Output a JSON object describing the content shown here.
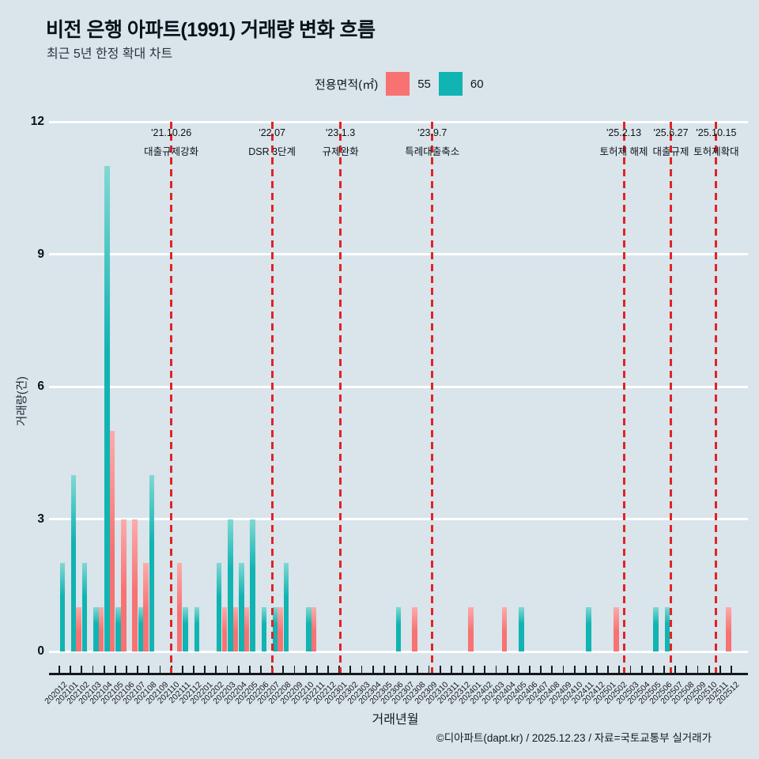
{
  "page": {
    "background": "#d9e4eb"
  },
  "header": {
    "title": "비전 은행 아파트(1991) 거래량 변화 흐름",
    "subtitle": "최근 5년 한정 확대 차트"
  },
  "legend": {
    "label": "전용면적(㎡)",
    "items": [
      {
        "name": "55",
        "color": "#f87272"
      },
      {
        "name": "60",
        "color": "#10b4b2"
      }
    ]
  },
  "chart_data": {
    "type": "bar",
    "title": "비전 은행 아파트(1991) 거래량 변화 흐름",
    "xlabel": "거래년월",
    "ylabel": "거래량(건)",
    "ylim": [
      0,
      12
    ],
    "yticks": [
      0,
      3,
      6,
      9,
      12
    ],
    "grid": true,
    "gridline_color": "#ffffff",
    "legend_position": "top",
    "categories": [
      "202012",
      "202101",
      "202102",
      "202103",
      "202104",
      "202105",
      "202106",
      "202107",
      "202108",
      "202109",
      "202110",
      "202111",
      "202112",
      "202201",
      "202202",
      "202203",
      "202204",
      "202205",
      "202206",
      "202207",
      "202208",
      "202209",
      "202210",
      "202211",
      "202212",
      "202301",
      "202302",
      "202303",
      "202304",
      "202305",
      "202306",
      "202307",
      "202308",
      "202309",
      "202310",
      "202311",
      "202312",
      "202401",
      "202402",
      "202403",
      "202404",
      "202405",
      "202406",
      "202407",
      "202408",
      "202409",
      "202410",
      "202411",
      "202412",
      "202501",
      "202502",
      "202503",
      "202504",
      "202505",
      "202506",
      "202507",
      "202508",
      "202509",
      "202510",
      "202511",
      "202512"
    ],
    "series": [
      {
        "name": "55",
        "color": "#f87272",
        "values": [
          0,
          0,
          1,
          0,
          1,
          5,
          3,
          3,
          2,
          0,
          0,
          2,
          0,
          0,
          0,
          1,
          1,
          1,
          0,
          0,
          1,
          0,
          0,
          1,
          0,
          0,
          0,
          0,
          0,
          0,
          0,
          0,
          1,
          0,
          0,
          0,
          0,
          1,
          0,
          0,
          1,
          0,
          0,
          0,
          0,
          0,
          0,
          0,
          0,
          0,
          1,
          0,
          0,
          0,
          0,
          0,
          0,
          0,
          0,
          0,
          1
        ]
      },
      {
        "name": "60",
        "color": "#10b4b2",
        "values": [
          2,
          4,
          2,
          1,
          11,
          1,
          0,
          1,
          4,
          0,
          0,
          1,
          1,
          0,
          2,
          3,
          2,
          3,
          1,
          1,
          2,
          0,
          1,
          0,
          0,
          0,
          0,
          0,
          0,
          0,
          1,
          0,
          0,
          0,
          0,
          0,
          0,
          0,
          0,
          0,
          0,
          1,
          0,
          0,
          0,
          0,
          0,
          1,
          0,
          0,
          0,
          0,
          0,
          1,
          1,
          0,
          0,
          0,
          0,
          0,
          0
        ]
      }
    ],
    "events": [
      {
        "date": "'21.10.26",
        "label": "대출규제강화",
        "month_index": 10.0
      },
      {
        "date": "'22.07",
        "label": "DSR 3단계",
        "month_index": 19.0
      },
      {
        "date": "'23.1.3",
        "label": "규제완화",
        "month_index": 25.1
      },
      {
        "date": "'23.9.7",
        "label": "특례대출축소",
        "month_index": 33.3
      },
      {
        "date": "'25.2.13",
        "label": "토허제 해제",
        "month_index": 50.4
      },
      {
        "date": "'25.6.27",
        "label": "대출규제",
        "month_index": 54.6
      },
      {
        "date": "'25.10.15",
        "label": "토허제확대",
        "month_index": 58.65
      }
    ],
    "event_line_color": "#e02424"
  },
  "footer": {
    "credit": "©디아파트(dapt.kr) / 2025.12.23 / 자료=국토교통부 실거래가"
  }
}
